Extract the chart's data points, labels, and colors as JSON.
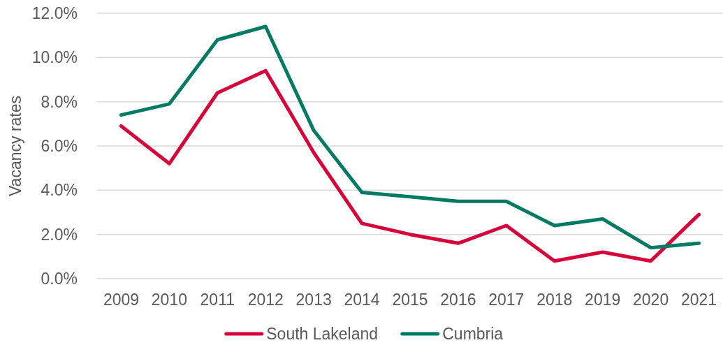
{
  "chart_data": {
    "type": "line",
    "ylabel": "Vacancy rates",
    "categories": [
      "2009",
      "2010",
      "2011",
      "2012",
      "2013",
      "2014",
      "2015",
      "2016",
      "2017",
      "2018",
      "2019",
      "2020",
      "2021"
    ],
    "series": [
      {
        "name": "South Lakeland",
        "color": "#d5033a",
        "values": [
          6.9,
          5.2,
          8.4,
          9.4,
          5.7,
          2.5,
          2.0,
          1.6,
          2.4,
          0.8,
          1.2,
          0.8,
          2.9
        ]
      },
      {
        "name": "Cumbria",
        "color": "#007a63",
        "values": [
          7.4,
          7.9,
          10.8,
          11.4,
          6.7,
          3.9,
          3.7,
          3.5,
          3.5,
          2.4,
          2.7,
          1.4,
          1.6
        ]
      }
    ],
    "ylim": [
      0,
      12
    ],
    "yticks": [
      {
        "value": 0,
        "label": "0.0%"
      },
      {
        "value": 2,
        "label": "2.0%"
      },
      {
        "value": 4,
        "label": "4.0%"
      },
      {
        "value": 6,
        "label": "6.0%"
      },
      {
        "value": 8,
        "label": "8.0%"
      },
      {
        "value": 10,
        "label": "10.0%"
      },
      {
        "value": 12,
        "label": "12.0%"
      }
    ],
    "grid": "y",
    "legend": "bottom",
    "marker": "none",
    "line_style": "solid"
  }
}
